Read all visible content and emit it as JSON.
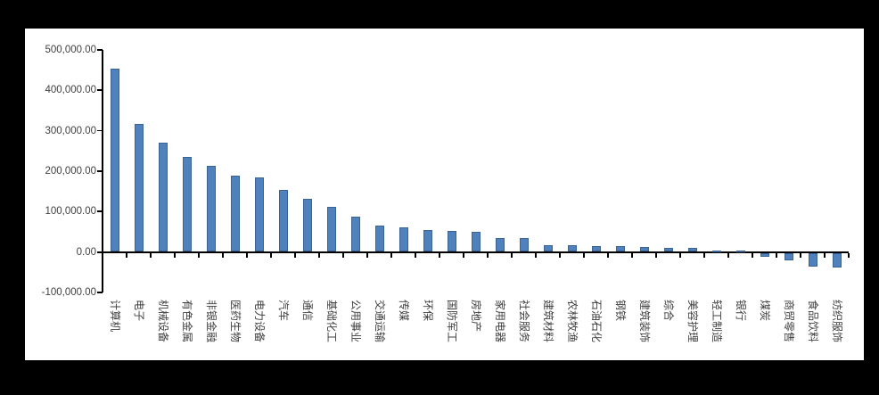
{
  "page": {
    "outer_background": "#000000",
    "panel_background": "#ffffff"
  },
  "chart_data": {
    "type": "bar",
    "title": "",
    "legend_position": "none",
    "grid": false,
    "bar_color": "#4f81bd",
    "bar_border_color": "#3a6394",
    "axis_color": "#000000",
    "tick_label_color": "#404040",
    "categories": [
      "计算机",
      "电子",
      "机械设备",
      "有色金属",
      "非银金融",
      "医药生物",
      "电力设备",
      "汽车",
      "通信",
      "基础化工",
      "公用事业",
      "交通运输",
      "传媒",
      "环保",
      "国防军工",
      "房地产",
      "家用电器",
      "社会服务",
      "建筑材料",
      "农林牧渔",
      "石油石化",
      "钢铁",
      "建筑装饰",
      "综合",
      "美容护理",
      "轻工制造",
      "银行",
      "煤炭",
      "商贸零售",
      "食品饮料",
      "纺织服饰"
    ],
    "values": [
      452000,
      316000,
      269000,
      233000,
      212000,
      188000,
      183000,
      152000,
      131000,
      110000,
      86000,
      63000,
      59000,
      53000,
      51000,
      48000,
      33000,
      32000,
      16000,
      15000,
      13500,
      13000,
      12000,
      9500,
      8000,
      3000,
      2000,
      -8000,
      -18000,
      -33000,
      -36000
    ],
    "xlabel": "",
    "ylabel": "",
    "ylim": [
      -100000,
      500000
    ],
    "y_ticks": [
      {
        "label": "500,000.00",
        "value": 500000
      },
      {
        "label": "400,000.00",
        "value": 400000
      },
      {
        "label": "300,000.00",
        "value": 300000
      },
      {
        "label": "200,000.00",
        "value": 200000
      },
      {
        "label": "100,000.00",
        "value": 100000
      },
      {
        "label": "0.00",
        "value": 0
      },
      {
        "label": "-100,000.00",
        "value": -100000
      }
    ]
  }
}
